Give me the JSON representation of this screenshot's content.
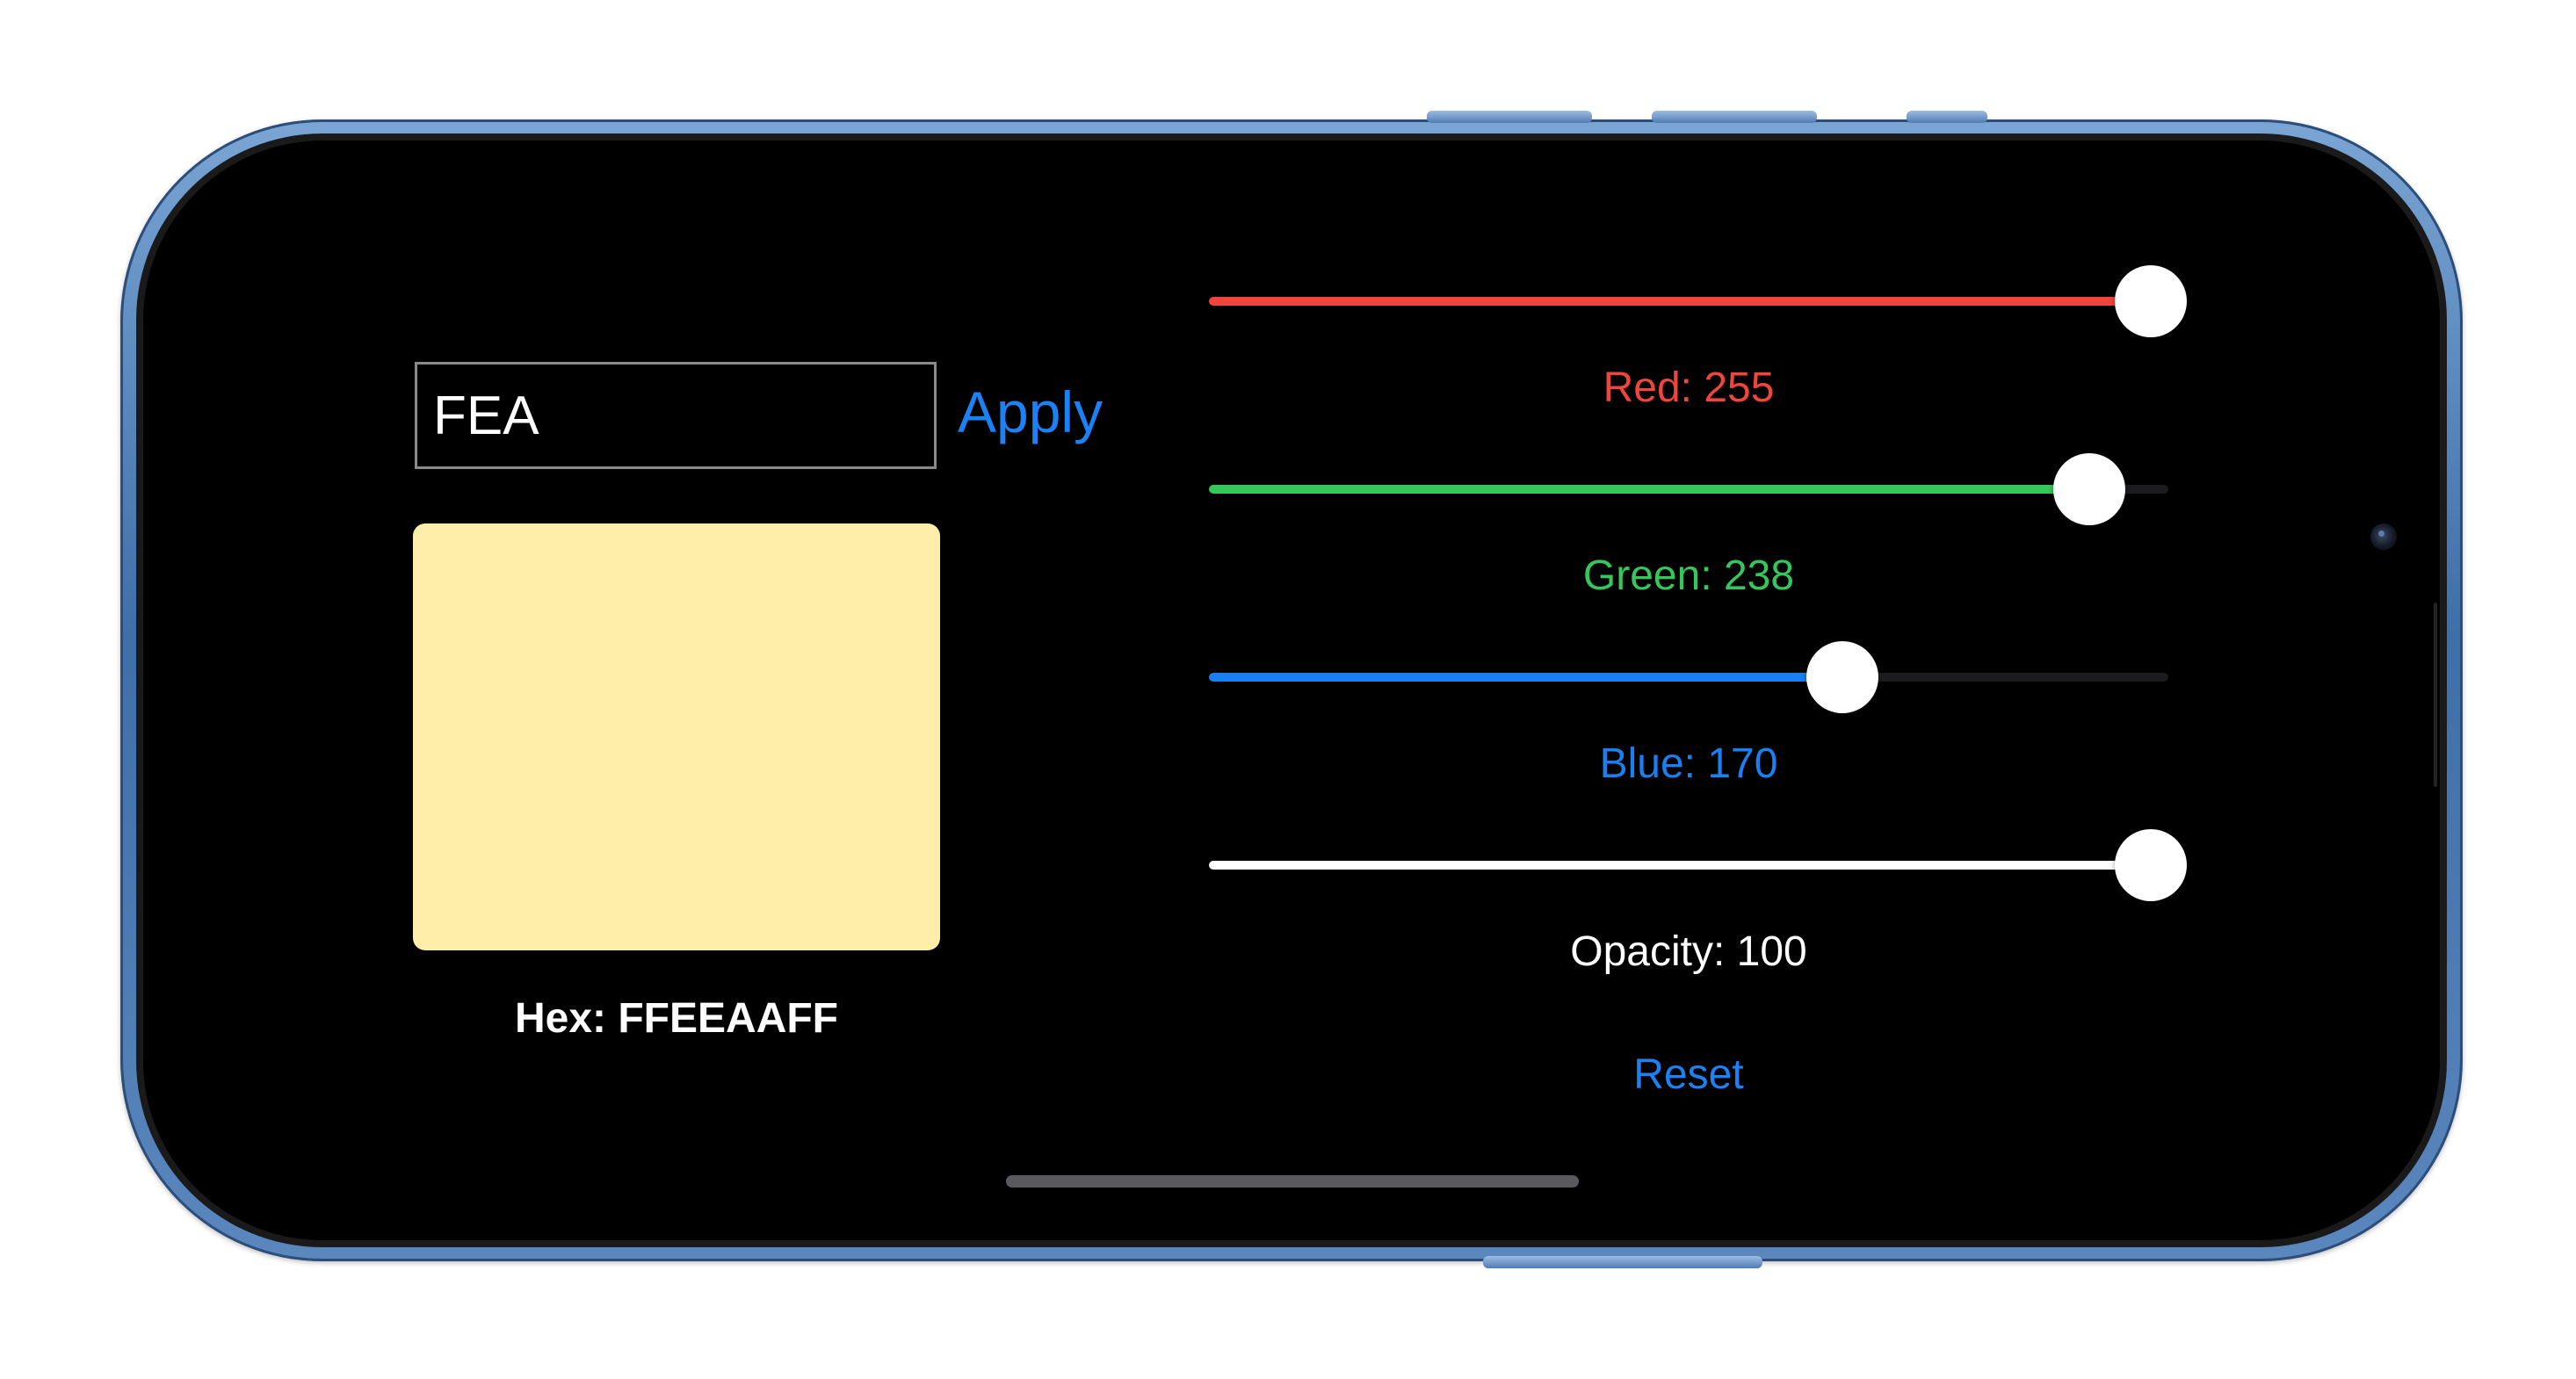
{
  "colors": {
    "accent": "#1a82f5",
    "red": "#f0453a",
    "green": "#34c759",
    "blue": "#1a7ff0",
    "white": "#ffffff",
    "swatch": "#FFEEAA"
  },
  "hex_input": {
    "value": "FEA"
  },
  "apply_label": "Apply",
  "hex_label": "Hex: FFEEAAFF",
  "sliders": [
    {
      "name": "red",
      "label": "Red: 255",
      "value": 255,
      "max": 255
    },
    {
      "name": "green",
      "label": "Green: 238",
      "value": 238,
      "max": 255
    },
    {
      "name": "blue",
      "label": "Blue: 170",
      "value": 170,
      "max": 255
    },
    {
      "name": "opacity",
      "label": "Opacity: 100",
      "value": 100,
      "max": 100
    }
  ],
  "reset_label": "Reset"
}
